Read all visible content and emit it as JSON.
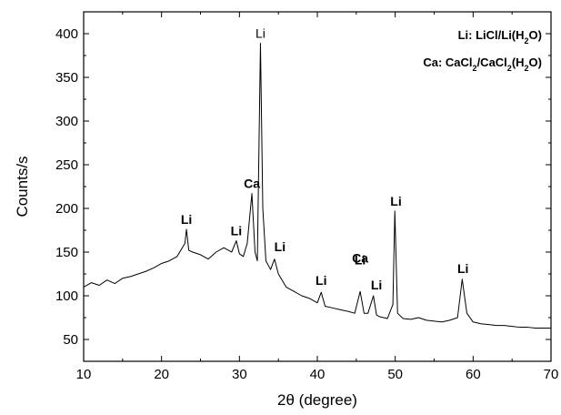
{
  "chart_data": {
    "type": "line",
    "title": "",
    "xlabel": "2θ (degree)",
    "ylabel": "Counts/s",
    "xlim": [
      10,
      70
    ],
    "ylim": [
      25,
      425
    ],
    "x_ticks": [
      10,
      20,
      30,
      40,
      50,
      60,
      70
    ],
    "y_ticks": [
      50,
      100,
      150,
      200,
      250,
      300,
      350,
      400
    ],
    "line_color": "#000000",
    "grid": false,
    "legend": {
      "position": "top-right",
      "entries": [
        {
          "prefix": "Li: LiCl/Li(H",
          "sub": "2",
          "suffix": "O)"
        },
        {
          "prefix": "Ca: CaCl",
          "sub": "2",
          "mid": "/CaCl",
          "sub2": "2",
          "suffix": "(H",
          "sub3": "2",
          "suffix2": "O)"
        }
      ]
    },
    "series": [
      {
        "values": [
          [
            10,
            110
          ],
          [
            11,
            115
          ],
          [
            12,
            112
          ],
          [
            13,
            118
          ],
          [
            14,
            114
          ],
          [
            15,
            120
          ],
          [
            16,
            122
          ],
          [
            17,
            125
          ],
          [
            18,
            128
          ],
          [
            19,
            132
          ],
          [
            20,
            137
          ],
          [
            21,
            140
          ],
          [
            22,
            145
          ],
          [
            23,
            160
          ],
          [
            23.2,
            176
          ],
          [
            23.5,
            152
          ],
          [
            24,
            150
          ],
          [
            25,
            147
          ],
          [
            26,
            142
          ],
          [
            27,
            150
          ],
          [
            28,
            155
          ],
          [
            29,
            150
          ],
          [
            29.6,
            163
          ],
          [
            30,
            148
          ],
          [
            30.5,
            145
          ],
          [
            31,
            160
          ],
          [
            31.6,
            217
          ],
          [
            32,
            150
          ],
          [
            32.3,
            140
          ],
          [
            32.7,
            389
          ],
          [
            33,
            200
          ],
          [
            33.4,
            140
          ],
          [
            34,
            130
          ],
          [
            34.5,
            142
          ],
          [
            35,
            125
          ],
          [
            36,
            110
          ],
          [
            37,
            105
          ],
          [
            38,
            100
          ],
          [
            39,
            97
          ],
          [
            40,
            92
          ],
          [
            40.5,
            104
          ],
          [
            41,
            88
          ],
          [
            42,
            86
          ],
          [
            43,
            84
          ],
          [
            44,
            82
          ],
          [
            44.8,
            80
          ],
          [
            45.5,
            105
          ],
          [
            46,
            80
          ],
          [
            46.5,
            80
          ],
          [
            47.2,
            100
          ],
          [
            47.6,
            78
          ],
          [
            48,
            76
          ],
          [
            49,
            74
          ],
          [
            49.7,
            90
          ],
          [
            49.95,
            197
          ],
          [
            50.3,
            80
          ],
          [
            51,
            74
          ],
          [
            52,
            73
          ],
          [
            53,
            75
          ],
          [
            54,
            72
          ],
          [
            55,
            71
          ],
          [
            56,
            70
          ],
          [
            57,
            72
          ],
          [
            58,
            75
          ],
          [
            58.6,
            119
          ],
          [
            59.2,
            80
          ],
          [
            60,
            70
          ],
          [
            61,
            68
          ],
          [
            62,
            67
          ],
          [
            63,
            66
          ],
          [
            64,
            66
          ],
          [
            65,
            65
          ],
          [
            66,
            64
          ],
          [
            67,
            64
          ],
          [
            68,
            63
          ],
          [
            69,
            63
          ],
          [
            70,
            63
          ]
        ]
      }
    ],
    "annotations": [
      {
        "text": "Li",
        "x": 23.2,
        "y": 176,
        "bold": true
      },
      {
        "text": "Li",
        "x": 29.6,
        "y": 163,
        "bold": true
      },
      {
        "text": "Ca",
        "x": 31.6,
        "y": 217,
        "bold": true
      },
      {
        "text": "Li",
        "x": 32.7,
        "y": 389,
        "bold": false
      },
      {
        "text": "Li",
        "x": 35.2,
        "y": 145,
        "bold": true
      },
      {
        "text": "Li",
        "x": 40.5,
        "y": 106,
        "bold": true
      },
      {
        "text": "Ca",
        "x": 45.5,
        "y": 132,
        "bold": true
      },
      {
        "text": "Li",
        "x": 45.5,
        "y": 107,
        "bold": true
      },
      {
        "text": "Li",
        "x": 47.6,
        "y": 101,
        "bold": true
      },
      {
        "text": "Li",
        "x": 50.1,
        "y": 197,
        "bold": true
      },
      {
        "text": "Li",
        "x": 58.7,
        "y": 120,
        "bold": true
      }
    ]
  }
}
